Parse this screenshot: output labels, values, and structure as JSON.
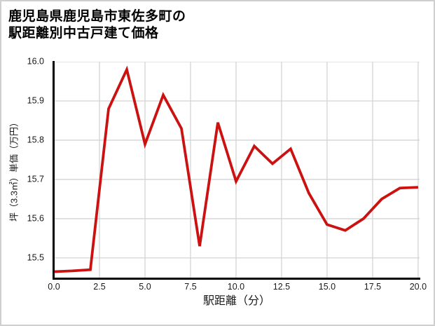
{
  "header": {
    "title_lines": [
      "鹿児島県鹿児島市東佐多町の",
      "駅距離別中古戸建て価格"
    ]
  },
  "chart_data": {
    "type": "line",
    "title": "鹿児島県鹿児島市東佐多町の駅距離別中古戸建て価格",
    "xlabel": "駅距離（分）",
    "ylabel": "坪（3.3㎡）単価（万円）",
    "x": [
      0,
      1,
      2,
      3,
      4,
      5,
      6,
      7,
      8,
      9,
      10,
      11,
      12,
      13,
      14,
      15,
      16,
      17,
      18,
      19,
      20
    ],
    "y": [
      15.465,
      15.467,
      15.47,
      15.88,
      15.98,
      15.79,
      15.915,
      15.83,
      15.53,
      15.845,
      15.695,
      15.785,
      15.74,
      15.778,
      15.665,
      15.585,
      15.57,
      15.6,
      15.65,
      15.678,
      15.68
    ],
    "xticks": [
      0.0,
      2.5,
      5.0,
      7.5,
      10.0,
      12.5,
      15.0,
      17.5,
      20.0
    ],
    "yticks": [
      15.5,
      15.6,
      15.7,
      15.8,
      15.9,
      16.0
    ],
    "xlim": [
      0,
      20.08
    ],
    "ylim": [
      15.448,
      16.0
    ],
    "grid": true,
    "legend": null,
    "line_color": "#cc1111",
    "line_width": 3.8,
    "grid_color": "#d4d4d4",
    "axis_color": "#000000",
    "tick_label_color": "#1a1a1a"
  }
}
